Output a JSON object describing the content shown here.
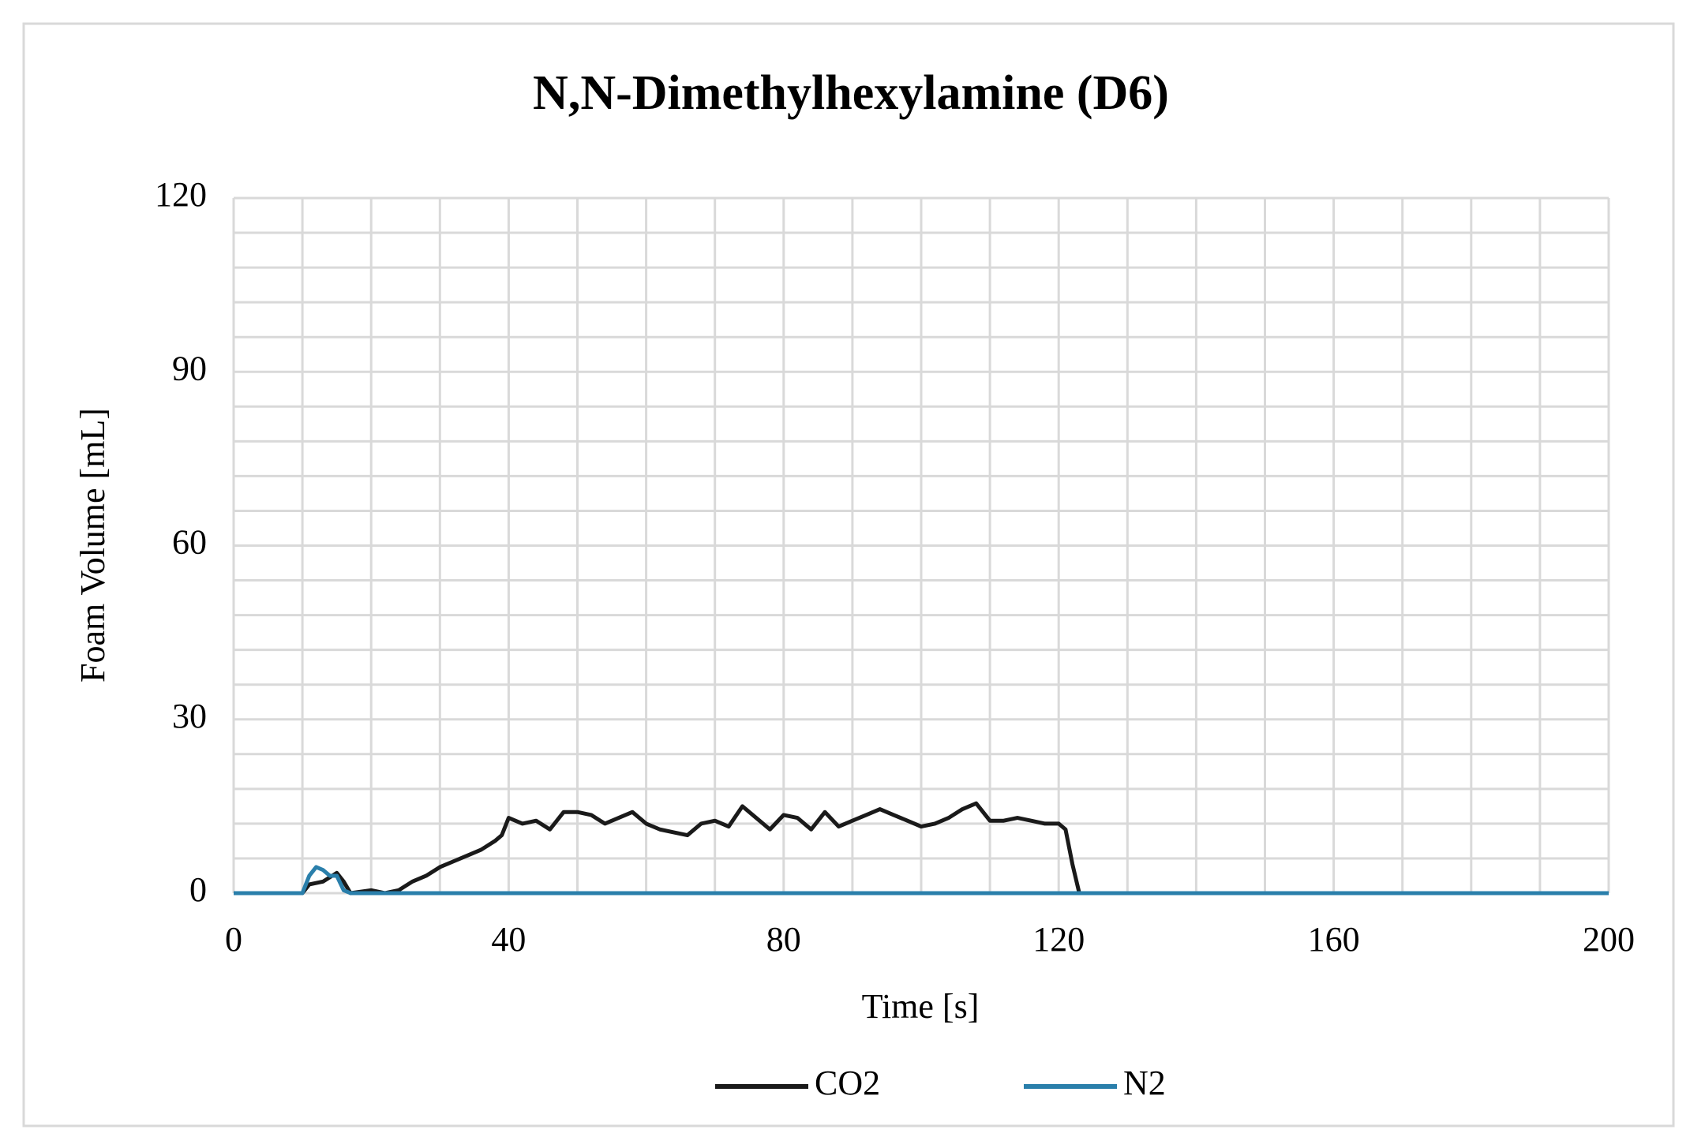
{
  "chart_data": {
    "type": "line",
    "title": "N,N-Dimethylhexylamine (D6)",
    "xlabel": "Time [s]",
    "ylabel": "Foam Volume [mL]",
    "xlim": [
      0,
      200
    ],
    "ylim": [
      0,
      120
    ],
    "xticks": [
      0,
      40,
      80,
      120,
      160,
      200
    ],
    "yticks": [
      0,
      30,
      60,
      90,
      120
    ],
    "xgrid": [
      0,
      10,
      20,
      30,
      40,
      50,
      60,
      70,
      80,
      90,
      100,
      110,
      120,
      130,
      140,
      150,
      160,
      170,
      180,
      190,
      200
    ],
    "ygrid": [
      0,
      6,
      12,
      18,
      24,
      30,
      36,
      42,
      48,
      54,
      60,
      66,
      72,
      78,
      84,
      90,
      96,
      102,
      108,
      114,
      120
    ],
    "grid": true,
    "legend": "bottom",
    "series": [
      {
        "name": "CO2",
        "color": "#1a1a1a",
        "x": [
          0,
          10,
          11,
          13,
          15,
          16,
          17,
          20,
          22,
          24,
          26,
          28,
          30,
          32,
          34,
          36,
          38,
          39,
          40,
          42,
          44,
          46,
          48,
          50,
          52,
          54,
          56,
          58,
          60,
          62,
          64,
          66,
          68,
          70,
          72,
          74,
          76,
          78,
          80,
          82,
          84,
          86,
          88,
          90,
          92,
          94,
          96,
          98,
          100,
          102,
          104,
          106,
          108,
          110,
          112,
          114,
          116,
          118,
          120,
          121,
          122,
          123,
          200
        ],
        "values": [
          0,
          0,
          1.5,
          2,
          3.5,
          2,
          0,
          0.5,
          0,
          0.5,
          2,
          3,
          4.5,
          5.5,
          6.5,
          7.5,
          9,
          10,
          13,
          12,
          12.5,
          11,
          14,
          14,
          13.5,
          12,
          13,
          14,
          12,
          11,
          10.5,
          10,
          12,
          12.5,
          11.5,
          15,
          13,
          11,
          13.5,
          13,
          11,
          14,
          11.5,
          12.5,
          13.5,
          14.5,
          13.5,
          12.5,
          11.5,
          12,
          13,
          14.5,
          15.5,
          12.5,
          12.5,
          13,
          12.5,
          12,
          12,
          11,
          5,
          0,
          0
        ]
      },
      {
        "name": "N2",
        "color": "#2a7fab",
        "x": [
          0,
          10,
          11,
          12,
          13,
          14,
          15,
          16,
          17,
          200
        ],
        "values": [
          0,
          0,
          3,
          4.5,
          4,
          3,
          3,
          0.5,
          0,
          0
        ]
      }
    ]
  }
}
